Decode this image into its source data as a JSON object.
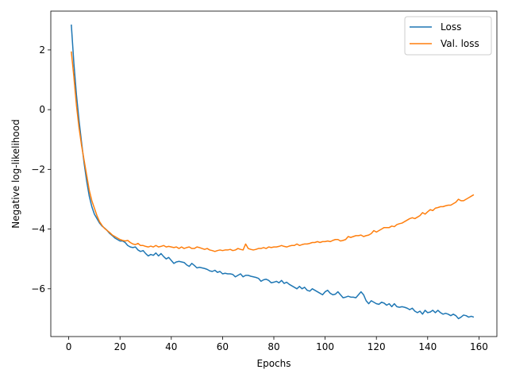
{
  "chart_data": {
    "type": "line",
    "title": "",
    "xlabel": "Epochs",
    "ylabel": "Negative log-likelihood",
    "xlim": [
      -7,
      167
    ],
    "ylim": [
      -7.6,
      3.3
    ],
    "xticks": [
      0,
      20,
      40,
      60,
      80,
      100,
      120,
      140,
      160
    ],
    "yticks": [
      -6,
      -4,
      -2,
      0,
      2
    ],
    "grid": false,
    "legend_position": "top-right",
    "series": [
      {
        "name": "Loss",
        "color": "#1f77b4",
        "x_start": 1,
        "values": [
          2.85,
          1.55,
          0.5,
          -0.35,
          -1.1,
          -1.8,
          -2.4,
          -2.9,
          -3.25,
          -3.5,
          -3.65,
          -3.8,
          -3.9,
          -3.97,
          -4.05,
          -4.15,
          -4.22,
          -4.3,
          -4.35,
          -4.4,
          -4.4,
          -4.45,
          -4.55,
          -4.6,
          -4.62,
          -4.6,
          -4.7,
          -4.75,
          -4.72,
          -4.82,
          -4.9,
          -4.85,
          -4.88,
          -4.8,
          -4.9,
          -4.82,
          -4.92,
          -5.0,
          -4.95,
          -5.05,
          -5.15,
          -5.1,
          -5.08,
          -5.1,
          -5.12,
          -5.2,
          -5.25,
          -5.15,
          -5.22,
          -5.3,
          -5.28,
          -5.3,
          -5.32,
          -5.35,
          -5.4,
          -5.42,
          -5.38,
          -5.45,
          -5.42,
          -5.5,
          -5.48,
          -5.5,
          -5.5,
          -5.52,
          -5.6,
          -5.55,
          -5.5,
          -5.6,
          -5.55,
          -5.55,
          -5.58,
          -5.6,
          -5.62,
          -5.65,
          -5.75,
          -5.7,
          -5.68,
          -5.72,
          -5.8,
          -5.78,
          -5.75,
          -5.8,
          -5.72,
          -5.82,
          -5.78,
          -5.85,
          -5.9,
          -5.95,
          -6.0,
          -5.92,
          -6.0,
          -5.95,
          -6.05,
          -6.08,
          -6.0,
          -6.05,
          -6.1,
          -6.15,
          -6.2,
          -6.1,
          -6.05,
          -6.15,
          -6.2,
          -6.18,
          -6.1,
          -6.2,
          -6.3,
          -6.28,
          -6.25,
          -6.28,
          -6.28,
          -6.3,
          -6.2,
          -6.1,
          -6.2,
          -6.4,
          -6.5,
          -6.4,
          -6.45,
          -6.5,
          -6.52,
          -6.45,
          -6.48,
          -6.55,
          -6.5,
          -6.6,
          -6.5,
          -6.6,
          -6.62,
          -6.6,
          -6.62,
          -6.65,
          -6.7,
          -6.65,
          -6.75,
          -6.8,
          -6.75,
          -6.85,
          -6.72,
          -6.8,
          -6.78,
          -6.72,
          -6.8,
          -6.72,
          -6.8,
          -6.85,
          -6.82,
          -6.85,
          -6.9,
          -6.85,
          -6.9,
          -7.0,
          -6.95,
          -6.88,
          -6.9,
          -6.95,
          -6.92,
          -6.95
        ]
      },
      {
        "name": "Val. loss",
        "color": "#ff7f0e",
        "x_start": 1,
        "values": [
          1.95,
          1.1,
          0.15,
          -0.6,
          -1.2,
          -1.7,
          -2.2,
          -2.7,
          -3.05,
          -3.3,
          -3.55,
          -3.75,
          -3.88,
          -3.98,
          -4.05,
          -4.12,
          -4.2,
          -4.25,
          -4.3,
          -4.35,
          -4.38,
          -4.4,
          -4.38,
          -4.45,
          -4.5,
          -4.52,
          -4.48,
          -4.55,
          -4.55,
          -4.58,
          -4.6,
          -4.57,
          -4.6,
          -4.55,
          -4.6,
          -4.58,
          -4.55,
          -4.6,
          -4.58,
          -4.6,
          -4.62,
          -4.6,
          -4.65,
          -4.6,
          -4.65,
          -4.62,
          -4.6,
          -4.65,
          -4.65,
          -4.6,
          -4.62,
          -4.65,
          -4.68,
          -4.65,
          -4.7,
          -4.72,
          -4.75,
          -4.72,
          -4.7,
          -4.72,
          -4.7,
          -4.7,
          -4.68,
          -4.72,
          -4.7,
          -4.65,
          -4.68,
          -4.7,
          -4.5,
          -4.65,
          -4.68,
          -4.7,
          -4.68,
          -4.65,
          -4.65,
          -4.62,
          -4.65,
          -4.6,
          -4.62,
          -4.6,
          -4.6,
          -4.58,
          -4.55,
          -4.58,
          -4.6,
          -4.57,
          -4.55,
          -4.55,
          -4.5,
          -4.55,
          -4.52,
          -4.5,
          -4.5,
          -4.48,
          -4.45,
          -4.45,
          -4.42,
          -4.45,
          -4.42,
          -4.42,
          -4.4,
          -4.42,
          -4.38,
          -4.35,
          -4.35,
          -4.4,
          -4.38,
          -4.35,
          -4.25,
          -4.28,
          -4.25,
          -4.22,
          -4.22,
          -4.2,
          -4.25,
          -4.22,
          -4.2,
          -4.15,
          -4.05,
          -4.1,
          -4.05,
          -4.0,
          -3.95,
          -3.95,
          -3.95,
          -3.9,
          -3.92,
          -3.85,
          -3.82,
          -3.8,
          -3.75,
          -3.7,
          -3.65,
          -3.62,
          -3.65,
          -3.6,
          -3.55,
          -3.45,
          -3.5,
          -3.42,
          -3.35,
          -3.38,
          -3.3,
          -3.28,
          -3.25,
          -3.25,
          -3.22,
          -3.2,
          -3.2,
          -3.15,
          -3.1,
          -3.0,
          -3.05,
          -3.05,
          -3.0,
          -2.95,
          -2.9,
          -2.85
        ]
      }
    ]
  }
}
